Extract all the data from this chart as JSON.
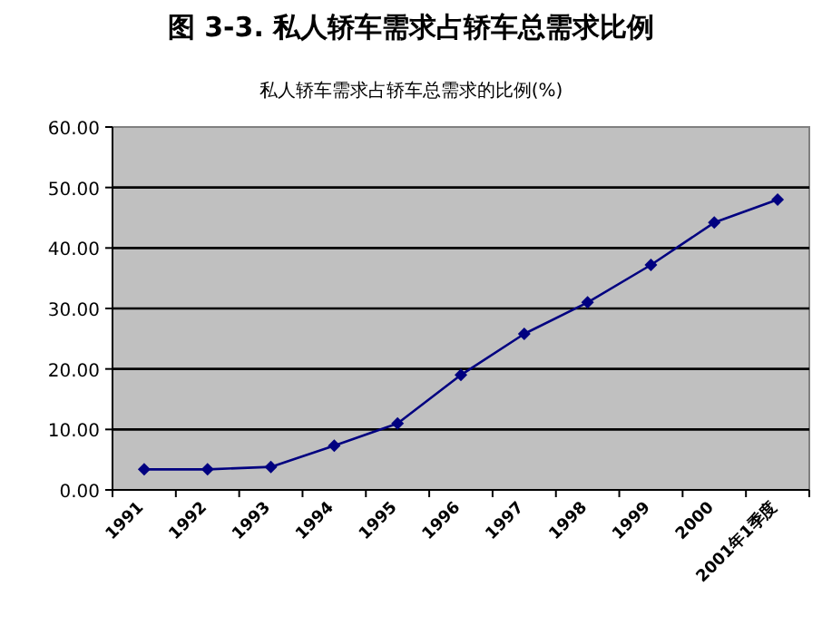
{
  "chart_data": {
    "type": "line",
    "title": "图 3-3. 私人轿车需求占轿车总需求比例",
    "subtitle": "私人轿车需求占轿车总需求的比例(%)",
    "categories": [
      "1991",
      "1992",
      "1993",
      "1994",
      "1995",
      "1996",
      "1997",
      "1998",
      "1999",
      "2000",
      "2001年1季度"
    ],
    "series": [
      {
        "color": "#000080",
        "values": [
          3.4,
          3.4,
          3.8,
          7.3,
          11.0,
          19.0,
          25.8,
          31.0,
          37.2,
          44.2,
          48.0
        ]
      }
    ],
    "ylim": [
      0,
      60
    ],
    "yticks": [
      {
        "value": 0,
        "label": "0.00"
      },
      {
        "value": 10,
        "label": "10.00"
      },
      {
        "value": 20,
        "label": "20.00"
      },
      {
        "value": 30,
        "label": "30.00"
      },
      {
        "value": 40,
        "label": "40.00"
      },
      {
        "value": 50,
        "label": "50.00"
      },
      {
        "value": 60,
        "label": "60.00"
      }
    ],
    "grid": "y",
    "marker": "diamond",
    "line_style": "solid"
  }
}
